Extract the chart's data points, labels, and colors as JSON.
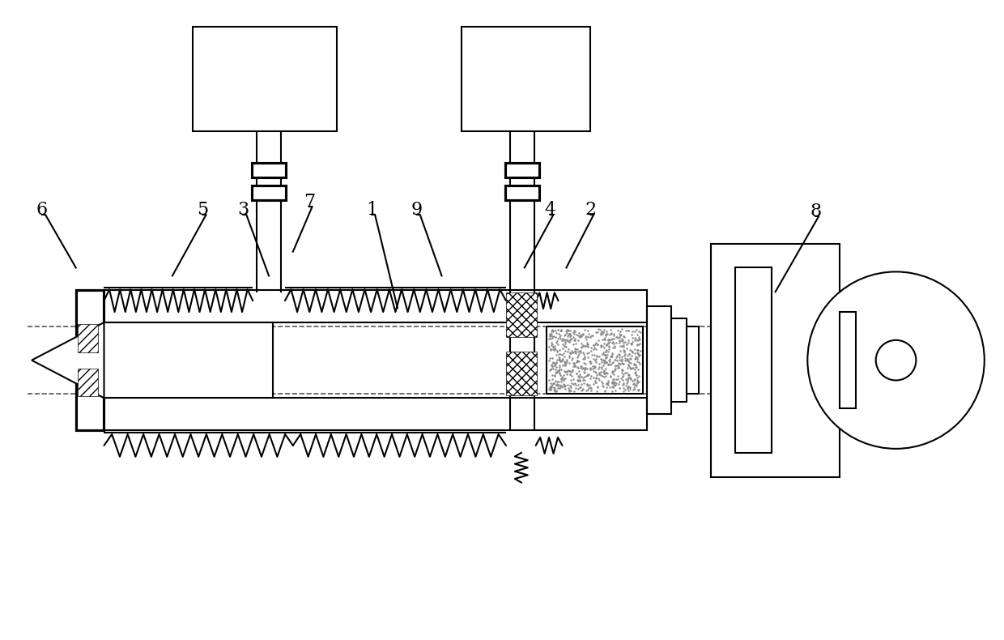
{
  "bg_color": "#ffffff",
  "lc": "#000000",
  "lw": 1.5,
  "lw_thin": 0.8,
  "lw_thick": 2.5
}
